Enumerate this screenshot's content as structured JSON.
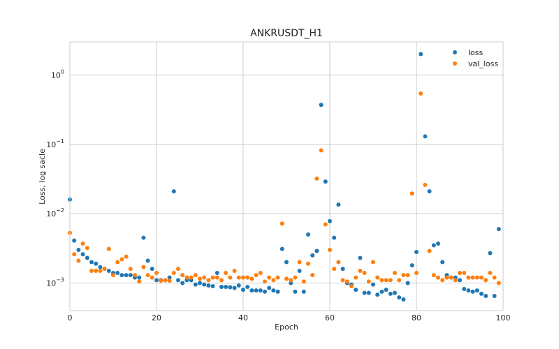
{
  "chart_data": {
    "type": "scatter",
    "title": "ANKRUSDT_H1",
    "xlabel": "Epoch",
    "ylabel": "Loss, log sacle",
    "xlim": [
      0,
      100
    ],
    "ylim": [
      0.0004,
      3.0
    ],
    "yscale": "log",
    "grid": true,
    "legend_position": "top-right",
    "x_ticks": [
      0,
      20,
      40,
      60,
      80,
      100
    ],
    "y_ticks": [
      {
        "value": 0.001,
        "base": "10",
        "exp": "−3"
      },
      {
        "value": 0.01,
        "base": "10",
        "exp": "−2"
      },
      {
        "value": 0.1,
        "base": "10",
        "exp": "−1"
      },
      {
        "value": 1,
        "base": "10",
        "exp": "0"
      }
    ],
    "series": [
      {
        "name": "loss",
        "color": "#1f77b4",
        "x": [
          0,
          1,
          2,
          3,
          4,
          5,
          6,
          7,
          8,
          9,
          10,
          11,
          12,
          13,
          14,
          15,
          16,
          17,
          18,
          19,
          20,
          21,
          22,
          23,
          24,
          25,
          26,
          27,
          28,
          29,
          30,
          31,
          32,
          33,
          34,
          35,
          36,
          37,
          38,
          39,
          40,
          41,
          42,
          43,
          44,
          45,
          46,
          47,
          48,
          49,
          50,
          51,
          52,
          53,
          54,
          55,
          56,
          57,
          58,
          59,
          60,
          61,
          62,
          63,
          64,
          65,
          66,
          67,
          68,
          69,
          70,
          71,
          72,
          73,
          74,
          75,
          76,
          77,
          78,
          79,
          80,
          81,
          82,
          83,
          84,
          85,
          86,
          87,
          88,
          89,
          90,
          91,
          92,
          93,
          94,
          95,
          96,
          97,
          98,
          99
        ],
        "y": [
          0.016,
          0.0041,
          0.003,
          0.0026,
          0.0023,
          0.002,
          0.0019,
          0.0017,
          0.0016,
          0.0015,
          0.0014,
          0.0014,
          0.0013,
          0.0013,
          0.0013,
          0.0012,
          0.0012,
          0.0045,
          0.0021,
          0.0016,
          0.0011,
          0.0011,
          0.0011,
          0.0012,
          0.021,
          0.0011,
          0.001,
          0.0011,
          0.0011,
          0.00095,
          0.001,
          0.00095,
          0.00092,
          0.0009,
          0.0014,
          0.00088,
          0.00088,
          0.00087,
          0.00085,
          0.00092,
          0.0008,
          0.00088,
          0.00078,
          0.00078,
          0.00078,
          0.00075,
          0.00085,
          0.00078,
          0.00075,
          0.0031,
          0.002,
          0.001,
          0.00075,
          0.0015,
          0.00075,
          0.005,
          0.0025,
          0.0029,
          0.37,
          0.029,
          0.0078,
          0.0045,
          0.0135,
          0.0016,
          0.001,
          0.00095,
          0.0008,
          0.0023,
          0.00072,
          0.00072,
          0.00095,
          0.00068,
          0.00075,
          0.0008,
          0.0007,
          0.00072,
          0.00062,
          0.00058,
          0.001,
          0.0018,
          0.0028,
          2.0,
          0.13,
          0.021,
          0.0035,
          0.0037,
          0.002,
          0.0013,
          0.0012,
          0.0012,
          0.0011,
          0.00082,
          0.00078,
          0.00075,
          0.00078,
          0.0007,
          0.00065,
          0.0027,
          0.00065,
          0.006
        ]
      },
      {
        "name": "val_loss",
        "color": "#ff7f0e",
        "x": [
          0,
          1,
          2,
          3,
          4,
          5,
          6,
          7,
          8,
          9,
          10,
          11,
          12,
          13,
          14,
          15,
          16,
          17,
          18,
          19,
          20,
          21,
          22,
          23,
          24,
          25,
          26,
          27,
          28,
          29,
          30,
          31,
          32,
          33,
          34,
          35,
          36,
          37,
          38,
          39,
          40,
          41,
          42,
          43,
          44,
          45,
          46,
          47,
          48,
          49,
          50,
          51,
          52,
          53,
          54,
          55,
          56,
          57,
          58,
          59,
          60,
          61,
          62,
          63,
          64,
          65,
          66,
          67,
          68,
          69,
          70,
          71,
          72,
          73,
          74,
          75,
          76,
          77,
          78,
          79,
          80,
          81,
          82,
          83,
          84,
          85,
          86,
          87,
          88,
          89,
          90,
          91,
          92,
          93,
          94,
          95,
          96,
          97,
          98,
          99
        ],
        "y": [
          0.0053,
          0.0026,
          0.0021,
          0.0037,
          0.0032,
          0.0015,
          0.0015,
          0.0015,
          0.0016,
          0.0031,
          0.0013,
          0.002,
          0.0022,
          0.0024,
          0.0016,
          0.0013,
          0.00105,
          0.0017,
          0.0013,
          0.0012,
          0.0014,
          0.00108,
          0.0011,
          0.00108,
          0.0014,
          0.0016,
          0.0013,
          0.0012,
          0.0012,
          0.0013,
          0.00115,
          0.0012,
          0.0011,
          0.0012,
          0.0012,
          0.0011,
          0.0014,
          0.0012,
          0.0015,
          0.0012,
          0.0012,
          0.0012,
          0.00115,
          0.0013,
          0.0014,
          0.00105,
          0.0012,
          0.0011,
          0.0012,
          0.0072,
          0.00115,
          0.0011,
          0.0012,
          0.002,
          0.00105,
          0.0019,
          0.0013,
          0.032,
          0.082,
          0.007,
          0.003,
          0.0016,
          0.002,
          0.0011,
          0.00105,
          0.0009,
          0.0012,
          0.0015,
          0.0014,
          0.00105,
          0.002,
          0.0012,
          0.0011,
          0.0011,
          0.0011,
          0.0014,
          0.0011,
          0.0013,
          0.0013,
          0.0195,
          0.0014,
          0.54,
          0.026,
          0.0029,
          0.0013,
          0.0012,
          0.0011,
          0.0012,
          0.0012,
          0.0011,
          0.0014,
          0.0014,
          0.0012,
          0.0012,
          0.0012,
          0.0012,
          0.0011,
          0.0014,
          0.0012,
          0.001
        ]
      }
    ]
  }
}
